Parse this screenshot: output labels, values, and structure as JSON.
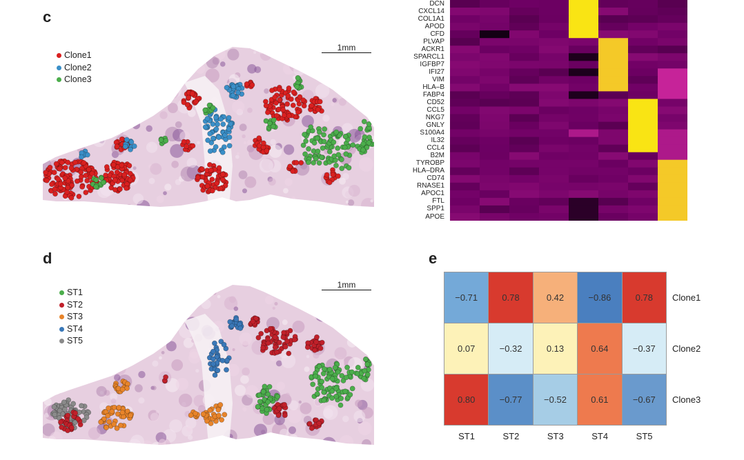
{
  "panels": {
    "c": {
      "label": "c"
    },
    "d": {
      "label": "d"
    },
    "e": {
      "label": "e"
    }
  },
  "scalebar_text": "1mm",
  "legend_c": [
    {
      "label": "Clone1",
      "color": "#d92020"
    },
    {
      "label": "Clone2",
      "color": "#3a8fc8"
    },
    {
      "label": "Clone3",
      "color": "#4cae4c"
    }
  ],
  "legend_d": [
    {
      "label": "ST1",
      "color": "#4cae4c"
    },
    {
      "label": "ST2",
      "color": "#c0202a"
    },
    {
      "label": "ST3",
      "color": "#e8842a"
    },
    {
      "label": "ST4",
      "color": "#3a78b8"
    },
    {
      "label": "ST5",
      "color": "#8a8a8a"
    }
  ],
  "heatmap_genes": [
    "DCN",
    "CXCL14",
    "COL1A1",
    "APOD",
    "CFD",
    "PLVAP",
    "ACKR1",
    "SPARCL1",
    "IGFBP7",
    "IFI27",
    "VIM",
    "HLA–B",
    "FABP4",
    "CD52",
    "CCL5",
    "NKG7",
    "GNLY",
    "S100A4",
    "IL32",
    "CCL4",
    "B2M",
    "TYROBP",
    "HLA–DRA",
    "CD74",
    "RNASE1",
    "APOC1",
    "FTL",
    "SPP1",
    "APOE"
  ],
  "correlation": {
    "rows": [
      "Clone1",
      "Clone2",
      "Clone3"
    ],
    "cols": [
      "ST1",
      "ST2",
      "ST3",
      "ST4",
      "ST5"
    ],
    "values": [
      [
        "−0.71",
        "0.78",
        "0.42",
        "−0.86",
        "0.78"
      ],
      [
        "0.07",
        "−0.32",
        "0.13",
        "0.64",
        "−0.37"
      ],
      [
        "0.80",
        "−0.77",
        "−0.52",
        "0.61",
        "−0.67"
      ]
    ],
    "colors": [
      [
        "#74a9d8",
        "#d83a2e",
        "#f6b07a",
        "#4a7fbf",
        "#d83a2e"
      ],
      [
        "#fdf2b8",
        "#d6ecf6",
        "#fdf2b8",
        "#ee7a4e",
        "#d6ecf6"
      ],
      [
        "#d83a2e",
        "#5b8fc8",
        "#a6cde6",
        "#ee7a4e",
        "#6a9acd"
      ]
    ]
  }
}
